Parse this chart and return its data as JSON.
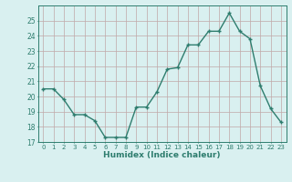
{
  "x": [
    0,
    1,
    2,
    3,
    4,
    5,
    6,
    7,
    8,
    9,
    10,
    11,
    12,
    13,
    14,
    15,
    16,
    17,
    18,
    19,
    20,
    21,
    22,
    23
  ],
  "y": [
    20.5,
    20.5,
    19.8,
    18.8,
    18.8,
    18.4,
    17.3,
    17.3,
    17.3,
    19.3,
    19.3,
    20.3,
    21.8,
    21.9,
    23.4,
    23.4,
    24.3,
    24.3,
    25.5,
    24.3,
    23.8,
    20.7,
    19.2,
    18.3
  ],
  "xlabel": "Humidex (Indice chaleur)",
  "ylim": [
    17,
    26
  ],
  "xlim": [
    -0.5,
    23.5
  ],
  "yticks": [
    17,
    18,
    19,
    20,
    21,
    22,
    23,
    24,
    25
  ],
  "xtick_labels": [
    "0",
    "1",
    "2",
    "3",
    "4",
    "5",
    "6",
    "7",
    "8",
    "9",
    "10",
    "11",
    "12",
    "13",
    "14",
    "15",
    "16",
    "17",
    "18",
    "19",
    "20",
    "21",
    "22",
    "23"
  ],
  "line_color": "#2e7d6e",
  "marker": "+",
  "bg_color": "#d9f0f0",
  "grid_color": "#c0a8a8",
  "tick_color": "#2e7d6e",
  "label_color": "#2e7d6e"
}
